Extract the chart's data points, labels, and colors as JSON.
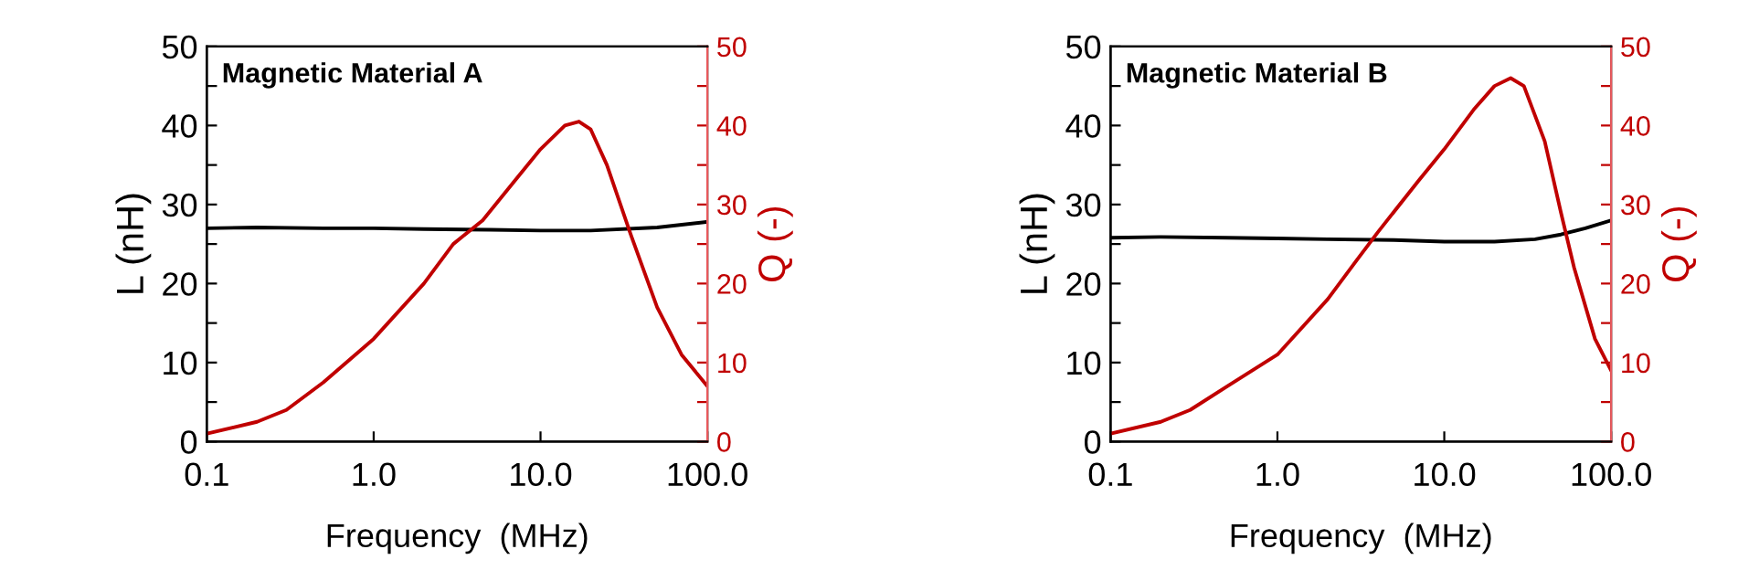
{
  "chart_data": [
    {
      "type": "line",
      "annotations": [
        "Magnetic Material A"
      ],
      "xlabel": "Frequency  (MHz)",
      "ylabel": "L (nH)",
      "y2label": "Q (-)",
      "log": "x",
      "xlim": [
        0.1,
        100
      ],
      "xticks": [
        {
          "value": 0.1,
          "label": "0.1"
        },
        {
          "value": 1,
          "label": "1.0"
        },
        {
          "value": 10,
          "label": "10.0"
        },
        {
          "value": 100,
          "label": "100.0"
        }
      ],
      "ylim": [
        0,
        50
      ],
      "yticks": [
        0,
        {
          "value": 5,
          "label": null
        },
        10,
        {
          "value": 15,
          "label": null
        },
        20,
        {
          "value": 25,
          "label": null
        },
        30,
        {
          "value": 35,
          "label": null
        },
        40,
        {
          "value": 45,
          "label": null
        },
        50
      ],
      "y2lim": [
        0,
        50
      ],
      "y2ticks": [
        0,
        {
          "value": 5,
          "label": null
        },
        10,
        {
          "value": 15,
          "label": null
        },
        20,
        {
          "value": 25,
          "label": null
        },
        30,
        {
          "value": 35,
          "label": null
        },
        40,
        {
          "value": 45,
          "label": null
        },
        50
      ],
      "series": [
        {
          "color": "#000000",
          "x": [
            0.1,
            0.2,
            0.5,
            1,
            2,
            5,
            10,
            20,
            50,
            100
          ],
          "values": [
            27,
            27.1,
            27,
            27,
            26.9,
            26.8,
            26.7,
            26.7,
            27.1,
            27.8
          ]
        },
        {
          "color": "#c00000",
          "axis": "y2",
          "x": [
            0.1,
            0.2,
            0.3,
            0.5,
            1,
            2,
            3,
            4.5,
            7,
            10,
            14,
            17,
            20,
            25,
            35,
            50,
            70,
            100
          ],
          "values": [
            1,
            2.5,
            4,
            7.5,
            13,
            20,
            25,
            28,
            33,
            37,
            40,
            40.5,
            39.5,
            35,
            26,
            17,
            11,
            7
          ]
        }
      ]
    },
    {
      "type": "line",
      "annotations": [
        "Magnetic Material B"
      ],
      "xlabel": "Frequency  (MHz)",
      "ylabel": "L (nH)",
      "y2label": "Q (-)",
      "log": "x",
      "xlim": [
        0.1,
        100
      ],
      "xticks": [
        {
          "value": 0.1,
          "label": "0.1"
        },
        {
          "value": 1,
          "label": "1.0"
        },
        {
          "value": 10,
          "label": "10.0"
        },
        {
          "value": 100,
          "label": "100.0"
        }
      ],
      "ylim": [
        0,
        50
      ],
      "yticks": [
        0,
        {
          "value": 5,
          "label": null
        },
        10,
        {
          "value": 15,
          "label": null
        },
        20,
        {
          "value": 25,
          "label": null
        },
        30,
        {
          "value": 35,
          "label": null
        },
        40,
        {
          "value": 45,
          "label": null
        },
        50
      ],
      "y2lim": [
        0,
        50
      ],
      "y2ticks": [
        0,
        {
          "value": 5,
          "label": null
        },
        10,
        {
          "value": 15,
          "label": null
        },
        20,
        {
          "value": 25,
          "label": null
        },
        30,
        {
          "value": 35,
          "label": null
        },
        40,
        {
          "value": 45,
          "label": null
        },
        50
      ],
      "series": [
        {
          "color": "#000000",
          "x": [
            0.1,
            0.2,
            0.5,
            1,
            2,
            5,
            10,
            20,
            35,
            50,
            70,
            100
          ],
          "values": [
            25.8,
            25.9,
            25.8,
            25.7,
            25.6,
            25.5,
            25.3,
            25.3,
            25.6,
            26.2,
            27,
            28
          ]
        },
        {
          "color": "#c00000",
          "axis": "y2",
          "x": [
            0.1,
            0.2,
            0.3,
            0.5,
            1,
            2,
            3,
            4,
            7,
            10,
            15,
            20,
            25,
            30,
            40,
            50,
            60,
            80,
            100
          ],
          "values": [
            1,
            2.5,
            4,
            7,
            11,
            18,
            23,
            26.5,
            33,
            37,
            42,
            45,
            46,
            45,
            38,
            29,
            22,
            13,
            9
          ]
        }
      ]
    }
  ]
}
